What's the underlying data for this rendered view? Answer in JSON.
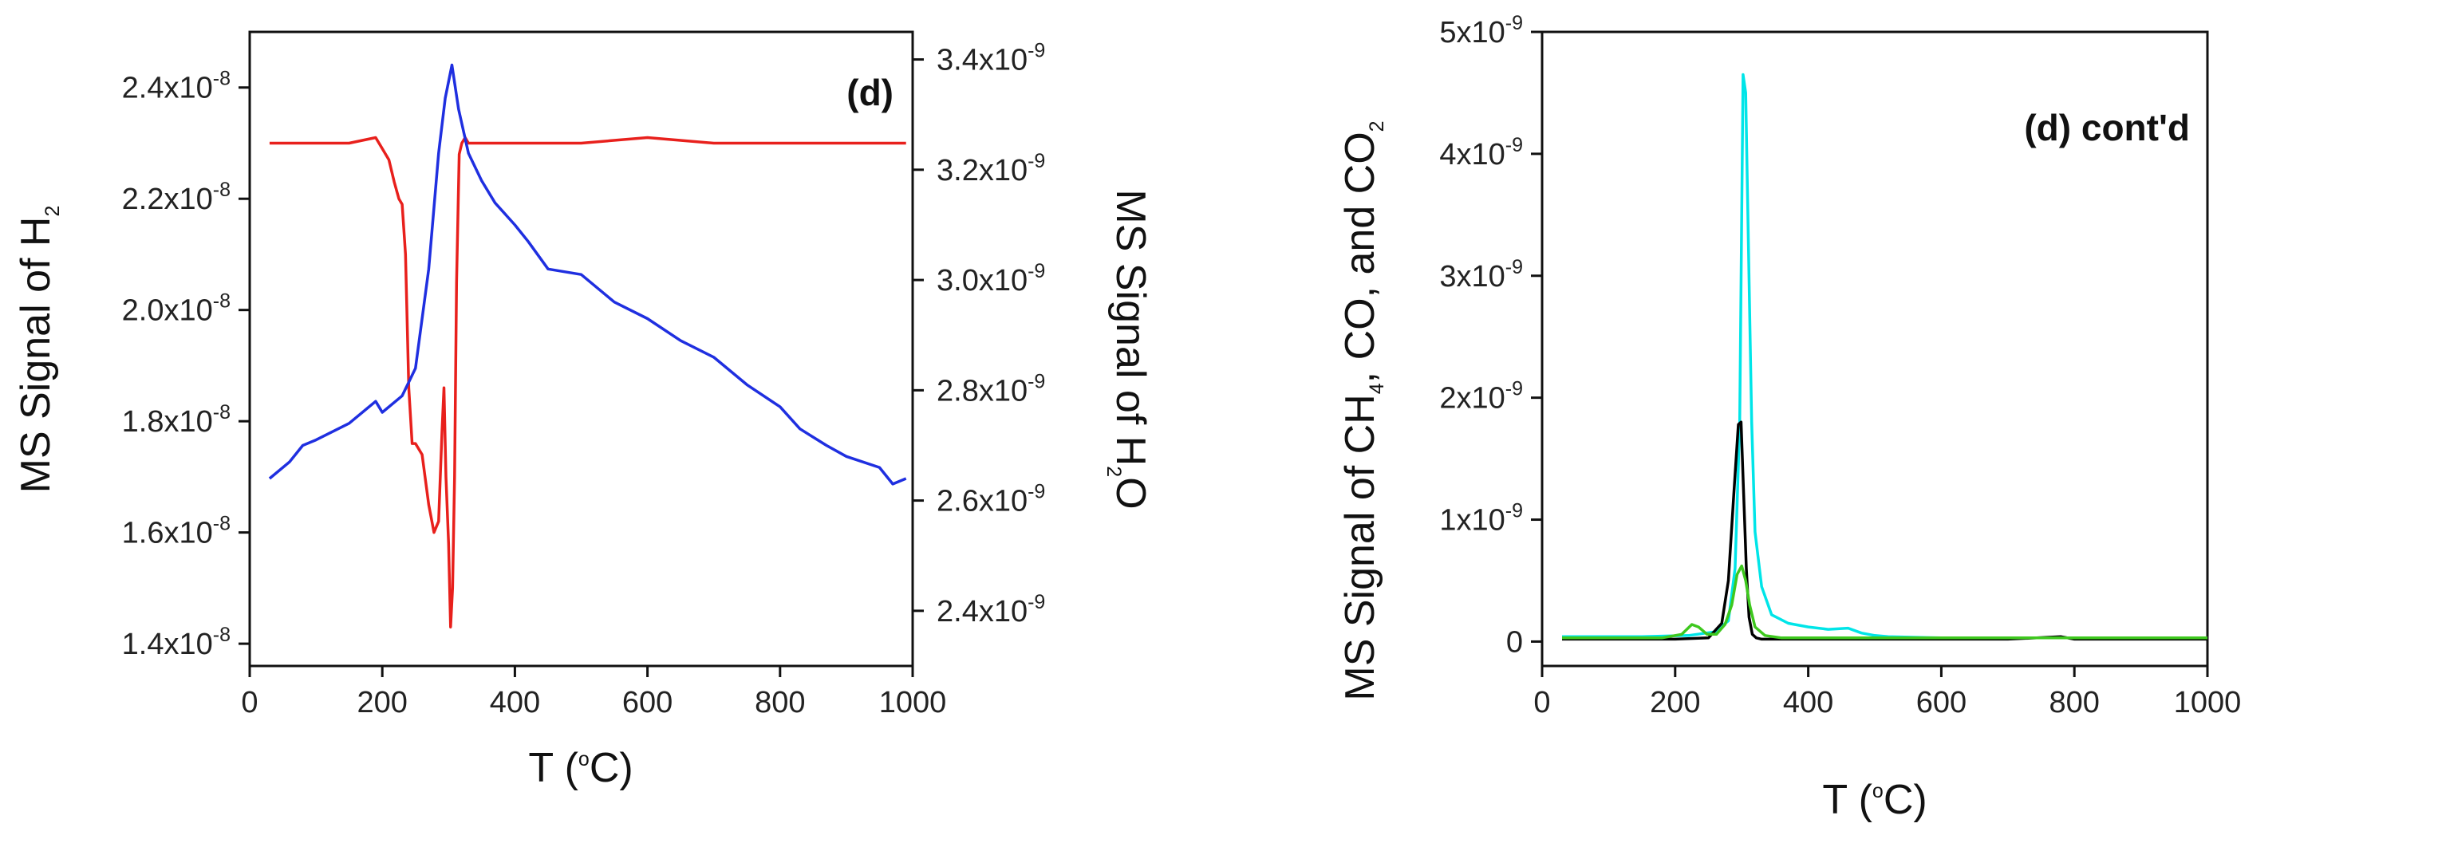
{
  "chart_data": [
    {
      "type": "line",
      "panel_label": "(d)",
      "xlabel": {
        "prefix": "T (",
        "sup": "o",
        "suffix": "C)"
      },
      "xlim": [
        0,
        1000
      ],
      "xticks": [
        0,
        200,
        400,
        600,
        800,
        1000
      ],
      "xtick_labels": [
        "0",
        "200",
        "400",
        "600",
        "800",
        "1000"
      ],
      "left_axis": {
        "label": {
          "prefix": "MS Signal of H",
          "sub": "2"
        },
        "lim": [
          1.36e-08,
          2.5e-08
        ],
        "ticks": [
          1.4e-08,
          1.6e-08,
          1.8e-08,
          2e-08,
          2.2e-08,
          2.4e-08
        ],
        "tick_labels": [
          {
            "mant": "1.4x10",
            "exp": "-8"
          },
          {
            "mant": "1.6x10",
            "exp": "-8"
          },
          {
            "mant": "1.8x10",
            "exp": "-8"
          },
          {
            "mant": "2.0x10",
            "exp": "-8"
          },
          {
            "mant": "2.2x10",
            "exp": "-8"
          },
          {
            "mant": "2.4x10",
            "exp": "-8"
          }
        ]
      },
      "right_axis": {
        "label": {
          "prefix": "MS Signal of H",
          "sub": "2",
          "suffix": "O"
        },
        "lim": [
          2.3e-09,
          3.45e-09
        ],
        "ticks": [
          2.4e-09,
          2.6e-09,
          2.8e-09,
          3e-09,
          3.2e-09,
          3.4e-09
        ],
        "tick_labels": [
          {
            "mant": "2.4x10",
            "exp": "-9"
          },
          {
            "mant": "2.6x10",
            "exp": "-9"
          },
          {
            "mant": "2.8x10",
            "exp": "-9"
          },
          {
            "mant": "3.0x10",
            "exp": "-9"
          },
          {
            "mant": "3.2x10",
            "exp": "-9"
          },
          {
            "mant": "3.4x10",
            "exp": "-9"
          }
        ]
      },
      "series": [
        {
          "name": "H2",
          "axis": "left",
          "color": "#e8201c",
          "x": [
            30,
            100,
            150,
            190,
            200,
            210,
            218,
            225,
            230,
            235,
            240,
            245,
            250,
            260,
            270,
            278,
            285,
            290,
            293,
            296,
            300,
            303,
            306,
            309,
            312,
            316,
            320,
            325,
            330,
            340,
            350,
            400,
            500,
            600,
            700,
            800,
            900,
            990
          ],
          "y": [
            2.3e-08,
            2.3e-08,
            2.3e-08,
            2.31e-08,
            2.29e-08,
            2.27e-08,
            2.23e-08,
            2.2e-08,
            2.19e-08,
            2.1e-08,
            1.86e-08,
            1.76e-08,
            1.76e-08,
            1.74e-08,
            1.65e-08,
            1.6e-08,
            1.62e-08,
            1.78e-08,
            1.86e-08,
            1.7e-08,
            1.58e-08,
            1.43e-08,
            1.5e-08,
            1.7e-08,
            2.05e-08,
            2.28e-08,
            2.3e-08,
            2.31e-08,
            2.3e-08,
            2.3e-08,
            2.3e-08,
            2.3e-08,
            2.3e-08,
            2.31e-08,
            2.3e-08,
            2.3e-08,
            2.3e-08,
            2.3e-08
          ]
        },
        {
          "name": "H2O",
          "axis": "right",
          "color": "#1f2fe0",
          "x": [
            30,
            60,
            80,
            100,
            150,
            190,
            200,
            210,
            230,
            250,
            270,
            285,
            295,
            305,
            315,
            330,
            350,
            370,
            400,
            420,
            450,
            500,
            550,
            600,
            650,
            700,
            750,
            800,
            830,
            870,
            900,
            950,
            970,
            990
          ],
          "y": [
            2.64e-09,
            2.67e-09,
            2.7e-09,
            2.71e-09,
            2.74e-09,
            2.78e-09,
            2.76e-09,
            2.77e-09,
            2.79e-09,
            2.84e-09,
            3.02e-09,
            3.23e-09,
            3.33e-09,
            3.39e-09,
            3.31e-09,
            3.23e-09,
            3.18e-09,
            3.14e-09,
            3.1e-09,
            3.07e-09,
            3.02e-09,
            3.01e-09,
            2.96e-09,
            2.93e-09,
            2.89e-09,
            2.86e-09,
            2.81e-09,
            2.77e-09,
            2.73e-09,
            2.7e-09,
            2.68e-09,
            2.66e-09,
            2.63e-09,
            2.64e-09
          ]
        }
      ]
    },
    {
      "type": "line",
      "panel_label": "(d) cont'd",
      "xlabel": {
        "prefix": "T (",
        "sup": "o",
        "suffix": "C)"
      },
      "xlim": [
        0,
        1000
      ],
      "xticks": [
        0,
        200,
        400,
        600,
        800,
        1000
      ],
      "xtick_labels": [
        "0",
        "200",
        "400",
        "600",
        "800",
        "1000"
      ],
      "ylabel": {
        "p1": "MS Signal of CH",
        "s1": "4",
        "p2": ", CO, and CO",
        "s2": "2"
      },
      "ylim": [
        -2e-10,
        5e-09
      ],
      "yticks": [
        0,
        1e-09,
        2e-09,
        3e-09,
        4e-09,
        5e-09
      ],
      "ytick_labels": [
        {
          "mant": "0",
          "exp": ""
        },
        {
          "mant": "1x10",
          "exp": "-9"
        },
        {
          "mant": "2x10",
          "exp": "-9"
        },
        {
          "mant": "3x10",
          "exp": "-9"
        },
        {
          "mant": "4x10",
          "exp": "-9"
        },
        {
          "mant": "5x10",
          "exp": "-9"
        }
      ],
      "series": [
        {
          "name": "cyan",
          "color": "#00e5e8",
          "x": [
            30,
            150,
            220,
            260,
            280,
            290,
            297,
            302,
            306,
            310,
            315,
            320,
            330,
            345,
            370,
            400,
            430,
            460,
            480,
            500,
            520,
            600,
            700,
            800,
            900,
            1000
          ],
          "y": [
            4e-11,
            4e-11,
            5e-11,
            8e-11,
            1.7e-10,
            6e-10,
            1.8e-09,
            4.65e-09,
            4.5e-09,
            3.3e-09,
            1.8e-09,
            9e-10,
            4.5e-10,
            2.2e-10,
            1.5e-10,
            1.2e-10,
            1e-10,
            1.1e-10,
            7e-11,
            5e-11,
            4e-11,
            3e-11,
            3e-11,
            3e-11,
            3e-11,
            3e-11
          ]
        },
        {
          "name": "black",
          "color": "#000000",
          "x": [
            30,
            200,
            250,
            270,
            280,
            288,
            295,
            299,
            303,
            307,
            311,
            316,
            322,
            330,
            400,
            700,
            780,
            800,
            1000
          ],
          "y": [
            2e-11,
            2e-11,
            3e-11,
            1.5e-10,
            5e-10,
            1.2e-09,
            1.78e-09,
            1.8e-09,
            1.2e-09,
            6e-10,
            2e-10,
            6e-11,
            3e-11,
            2e-11,
            2e-11,
            2e-11,
            4e-11,
            2e-11,
            2e-11
          ]
        },
        {
          "name": "green",
          "color": "#3ec81e",
          "x": [
            30,
            180,
            210,
            225,
            235,
            248,
            262,
            275,
            285,
            293,
            300,
            306,
            312,
            320,
            335,
            360,
            450,
            600,
            800,
            1000
          ],
          "y": [
            3e-11,
            3e-11,
            6e-11,
            1.4e-10,
            1.2e-10,
            6e-11,
            6e-11,
            1.4e-10,
            3e-10,
            5.5e-10,
            6.2e-10,
            5e-10,
            3e-10,
            1.2e-10,
            5e-11,
            3e-11,
            3e-11,
            3e-11,
            3e-11,
            3e-11
          ]
        }
      ]
    }
  ]
}
